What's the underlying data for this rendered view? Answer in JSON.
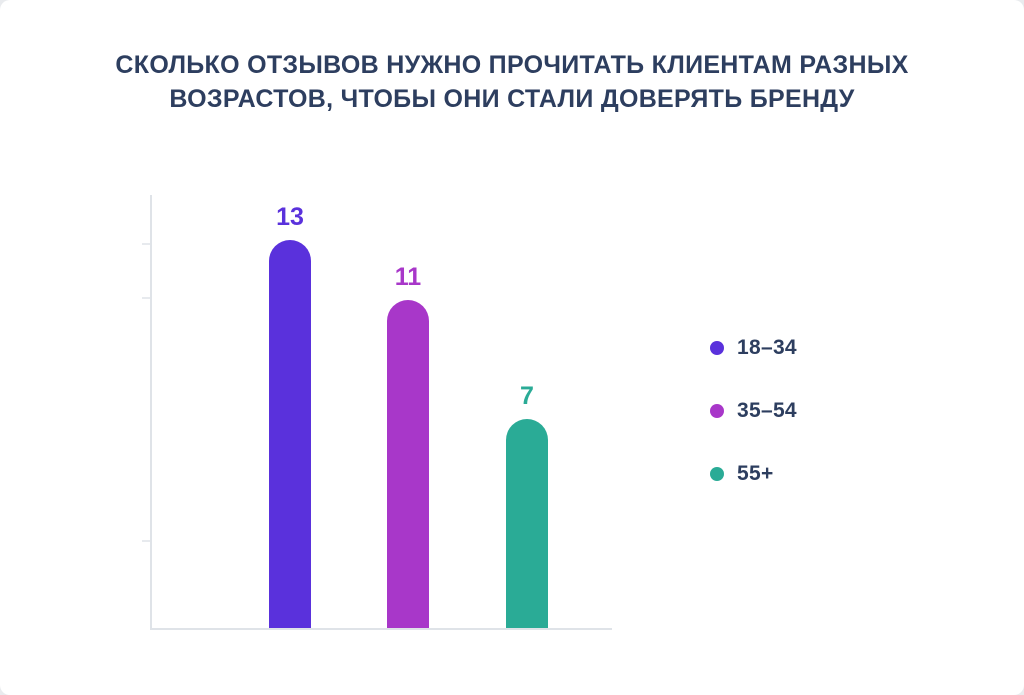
{
  "page": {
    "title": "СКОЛЬКО ОТЗЫВОВ НУЖНО ПРОЧИТАТЬ КЛИЕНТАМ РАЗНЫХ ВОЗРАСТОВ, ЧТОБЫ ОНИ СТАЛИ ДОВЕРЯТЬ БРЕНДУ"
  },
  "chart_data": {
    "type": "bar",
    "title": "СКОЛЬКО ОТЗЫВОВ НУЖНО ПРОЧИТАТЬ КЛИЕНТАМ РАЗНЫХ ВОЗРАСТОВ, ЧТОБЫ ОНИ СТАЛИ ДОВЕРЯТЬ БРЕНДУ",
    "categories": [
      "18–34",
      "35–54",
      "55+"
    ],
    "values": [
      13,
      11,
      7
    ],
    "colors": [
      "#5a31dc",
      "#a837c9",
      "#2aab96"
    ],
    "xlabel": "",
    "ylabel": "",
    "ylim": [
      0,
      14.5
    ],
    "grid": false,
    "legend_position": "right",
    "data_labels": [
      "13",
      "11",
      "7"
    ]
  }
}
